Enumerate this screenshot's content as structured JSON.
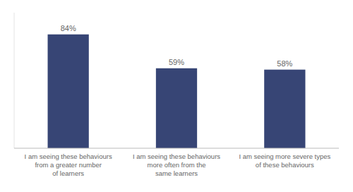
{
  "chart_data": {
    "type": "bar",
    "categories": [
      "I am seeing these behaviours\nfrom a greater number\nof learners",
      "I am seeing these behaviours\nmore often from the\nsame learners",
      "I am seeing more severe types\nof these behaviours"
    ],
    "values": [
      84,
      59,
      58
    ],
    "value_labels": [
      "84%",
      "59%",
      "58%"
    ],
    "color": "#374575",
    "ylim": [
      0,
      100
    ],
    "data_labels": true,
    "tick_labels": "x",
    "grid": false
  }
}
